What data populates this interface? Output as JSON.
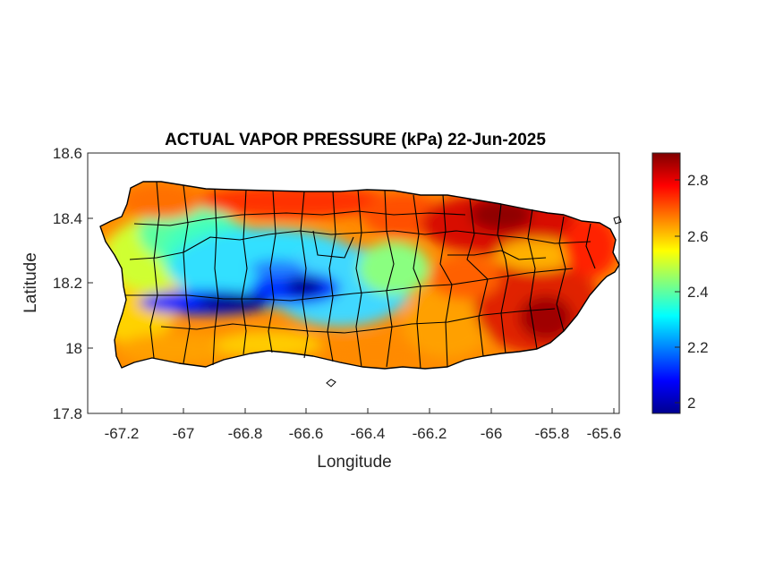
{
  "title": "ACTUAL VAPOR PRESSURE (kPa) 22-Jun-2025",
  "xlabel": "Longitude",
  "ylabel": "Latitude",
  "x_ticks": [
    "-67.2",
    "-67",
    "-66.8",
    "-66.6",
    "-66.4",
    "-66.2",
    "-66",
    "-65.8",
    "-65.6"
  ],
  "y_ticks": [
    "18.6",
    "18.4",
    "18.2",
    "18",
    "17.8"
  ],
  "colorbar": {
    "colormap": "jet",
    "range": [
      1.96,
      2.91
    ],
    "ticks": [
      "2.8",
      "2.6",
      "2.4",
      "2.2",
      "2"
    ]
  },
  "map": {
    "region": "Puerto Rico",
    "field": "actual vapor pressure",
    "units": "kPa",
    "xlim": [
      -67.3,
      -65.59
    ],
    "ylim": [
      17.8,
      18.6
    ],
    "features": [
      "municipality boundaries",
      "island outline"
    ]
  }
}
